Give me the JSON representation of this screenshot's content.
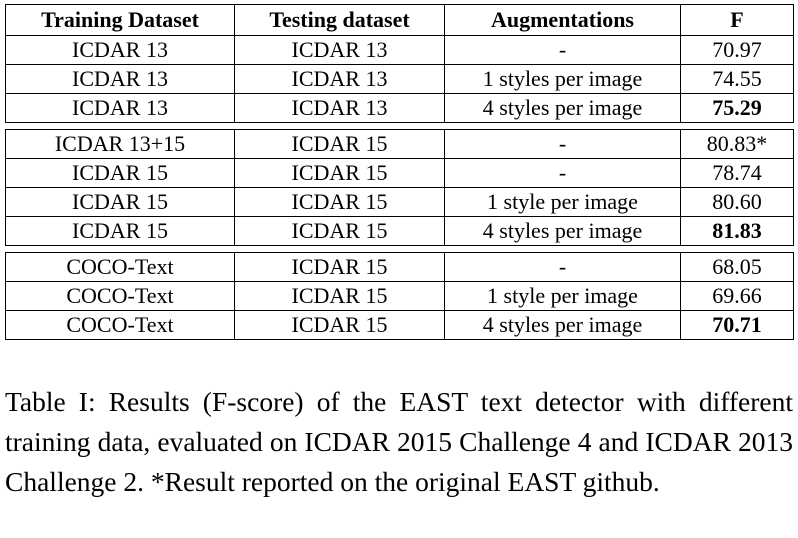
{
  "table": {
    "headers": [
      "Training Dataset",
      "Testing dataset",
      "Augmentations",
      "F"
    ],
    "groups": [
      {
        "rows": [
          {
            "train": "ICDAR 13",
            "test": "ICDAR 13",
            "aug": "-",
            "f": "70.97",
            "best": false
          },
          {
            "train": "ICDAR 13",
            "test": "ICDAR 13",
            "aug": "1 styles per image",
            "f": "74.55",
            "best": false
          },
          {
            "train": "ICDAR 13",
            "test": "ICDAR 13",
            "aug": "4 styles per image",
            "f": "75.29",
            "best": true
          }
        ]
      },
      {
        "rows": [
          {
            "train": "ICDAR 13+15",
            "test": "ICDAR 15",
            "aug": "-",
            "f": "80.83*",
            "best": false
          },
          {
            "train": "ICDAR 15",
            "test": "ICDAR 15",
            "aug": "-",
            "f": "78.74",
            "best": false
          },
          {
            "train": "ICDAR 15",
            "test": "ICDAR 15",
            "aug": "1 style per image",
            "f": "80.60",
            "best": false
          },
          {
            "train": "ICDAR 15",
            "test": "ICDAR 15",
            "aug": "4 styles per image",
            "f": "81.83",
            "best": true
          }
        ]
      },
      {
        "rows": [
          {
            "train": "COCO-Text",
            "test": "ICDAR 15",
            "aug": "-",
            "f": "68.05",
            "best": false
          },
          {
            "train": "COCO-Text",
            "test": "ICDAR 15",
            "aug": "1 style per image",
            "f": "69.66",
            "best": false
          },
          {
            "train": "COCO-Text",
            "test": "ICDAR 15",
            "aug": "4 styles per image",
            "f": "70.71",
            "best": true
          }
        ]
      }
    ]
  },
  "caption": "Table I: Results (F-score) of the EAST text detector with different training data, evaluated on ICDAR 2015 Challenge 4 and ICDAR 2013 Challenge 2. *Result reported on the original EAST github."
}
